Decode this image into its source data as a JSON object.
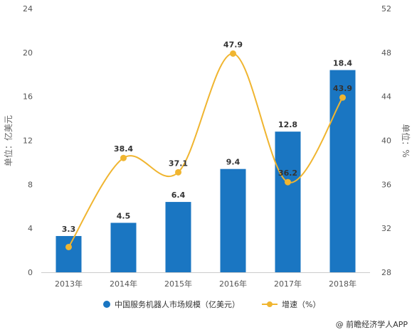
{
  "chart_data": {
    "type": "bar",
    "categories": [
      "2013年",
      "2014年",
      "2015年",
      "2016年",
      "2017年",
      "2018年"
    ],
    "series": [
      {
        "name": "中国服务机器人市场规模（亿美元）",
        "type": "bar",
        "axis": "left",
        "values": [
          3.3,
          4.5,
          6.4,
          9.4,
          12.8,
          18.4
        ],
        "labels": [
          "3.3",
          "4.5",
          "6.4",
          "9.4",
          "12.8",
          "18.4"
        ],
        "color": "#1a76c2"
      },
      {
        "name": "增速（%）",
        "type": "line",
        "axis": "right",
        "values": [
          30.3,
          38.4,
          37.1,
          47.9,
          36.2,
          43.9
        ],
        "labels": [
          "",
          "38.4",
          "37.1",
          "47.9",
          "36.2",
          "43.9"
        ],
        "color": "#f0b530"
      }
    ],
    "ylabel": "单位：亿美元",
    "y2label": "单位：%",
    "ylim": [
      0,
      24
    ],
    "yticks": [
      "0",
      "4",
      "8",
      "12",
      "16",
      "20",
      "24"
    ],
    "y2lim": [
      28,
      52
    ],
    "y2ticks": [
      "28",
      "32",
      "36",
      "40",
      "44",
      "48",
      "52"
    ],
    "grid": false,
    "legend": "bottom-center"
  },
  "watermark": "@ 前瞻经济学人APP"
}
